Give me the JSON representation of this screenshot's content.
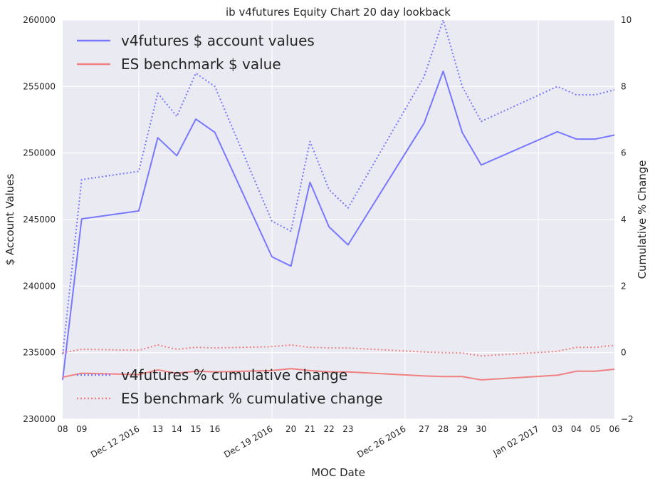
{
  "chart_data": {
    "type": "line",
    "title": "ib v4futures Equity Chart 20 day lookback",
    "xlabel": "MOC Date",
    "ylabel_left": "$ Account Values",
    "ylabel_right": "Cumulative % Change",
    "style": {
      "background": "#EAEAF2",
      "grid_color": "#FFFFFF",
      "grid": true
    },
    "x_range": [
      "2016-12-08",
      "2017-01-06"
    ],
    "ylim_left": [
      230000,
      260000
    ],
    "ylim_right": [
      -2,
      10
    ],
    "yticks_left": [
      {
        "value": 230000,
        "label": "230000"
      },
      {
        "value": 235000,
        "label": "235000"
      },
      {
        "value": 240000,
        "label": "240000"
      },
      {
        "value": 245000,
        "label": "245000"
      },
      {
        "value": 250000,
        "label": "250000"
      },
      {
        "value": 255000,
        "label": "255000"
      },
      {
        "value": 260000,
        "label": "260000"
      }
    ],
    "yticks_right": [
      {
        "value": -2,
        "label": "−2"
      },
      {
        "value": 0,
        "label": "0"
      },
      {
        "value": 2,
        "label": "2"
      },
      {
        "value": 4,
        "label": "4"
      },
      {
        "value": 6,
        "label": "6"
      },
      {
        "value": 8,
        "label": "8"
      },
      {
        "value": 10,
        "label": "10"
      }
    ],
    "major_ticks": [
      {
        "date": "2016-12-12",
        "label": "Dec 12 2016"
      },
      {
        "date": "2016-12-19",
        "label": "Dec 19 2016"
      },
      {
        "date": "2016-12-26",
        "label": "Dec 26 2016"
      },
      {
        "date": "2017-01-02",
        "label": "Jan 02 2017"
      }
    ],
    "minor_ticks": [
      {
        "date": "2016-12-08",
        "label": "08"
      },
      {
        "date": "2016-12-09",
        "label": "09"
      },
      {
        "date": "2016-12-13",
        "label": "13"
      },
      {
        "date": "2016-12-14",
        "label": "14"
      },
      {
        "date": "2016-12-15",
        "label": "15"
      },
      {
        "date": "2016-12-16",
        "label": "16"
      },
      {
        "date": "2016-12-20",
        "label": "20"
      },
      {
        "date": "2016-12-21",
        "label": "21"
      },
      {
        "date": "2016-12-22",
        "label": "22"
      },
      {
        "date": "2016-12-23",
        "label": "23"
      },
      {
        "date": "2016-12-27",
        "label": "27"
      },
      {
        "date": "2016-12-28",
        "label": "28"
      },
      {
        "date": "2016-12-29",
        "label": "29"
      },
      {
        "date": "2016-12-30",
        "label": "30"
      },
      {
        "date": "2017-01-03",
        "label": "03"
      },
      {
        "date": "2017-01-04",
        "label": "04"
      },
      {
        "date": "2017-01-05",
        "label": "05"
      },
      {
        "date": "2017-01-06",
        "label": "06"
      }
    ],
    "dates": [
      "2016-12-08",
      "2016-12-09",
      "2016-12-12",
      "2016-12-13",
      "2016-12-14",
      "2016-12-15",
      "2016-12-16",
      "2016-12-19",
      "2016-12-20",
      "2016-12-21",
      "2016-12-22",
      "2016-12-23",
      "2016-12-27",
      "2016-12-28",
      "2016-12-29",
      "2016-12-30",
      "2017-01-03",
      "2017-01-04",
      "2017-01-05",
      "2017-01-06"
    ],
    "series": [
      {
        "name": "v4futures $ account values",
        "axis": "left",
        "color": "#7777FF",
        "dash": "solid",
        "legend_group": "top",
        "values": [
          232950,
          245050,
          245650,
          251150,
          249800,
          252550,
          251550,
          242200,
          241500,
          247800,
          244450,
          243100,
          252250,
          256150,
          251550,
          249100,
          251600,
          251050,
          251050,
          251350
        ]
      },
      {
        "name": "ES benchmark $ value",
        "axis": "left",
        "color": "#F08080",
        "dash": "solid",
        "legend_group": "top",
        "values": [
          233150,
          233450,
          233350,
          233700,
          233450,
          233600,
          233550,
          233650,
          233800,
          233650,
          233550,
          233550,
          233250,
          233200,
          233200,
          232950,
          233300,
          233600,
          233600,
          233750
        ]
      },
      {
        "name": "v4futures % cumulative change",
        "axis": "right",
        "color": "#7777FF",
        "dash": "dotted",
        "legend_group": "bottom",
        "values": [
          -0.05,
          5.2,
          5.45,
          7.8,
          7.1,
          8.4,
          8.0,
          3.95,
          3.65,
          6.35,
          4.9,
          4.35,
          8.3,
          10.0,
          8.0,
          6.95,
          8.0,
          7.75,
          7.75,
          7.9
        ]
      },
      {
        "name": "ES benchmark % cumulative change",
        "axis": "right",
        "color": "#F08080",
        "dash": "dotted",
        "legend_group": "bottom",
        "values": [
          0.0,
          0.1,
          0.07,
          0.23,
          0.1,
          0.16,
          0.14,
          0.18,
          0.23,
          0.16,
          0.14,
          0.14,
          0.02,
          0.0,
          -0.01,
          -0.1,
          0.04,
          0.16,
          0.16,
          0.22
        ]
      }
    ],
    "legends": {
      "top": {
        "placement": "top-left",
        "entries": [
          "v4futures $ account values",
          "ES benchmark $ value"
        ]
      },
      "bottom": {
        "placement": "bottom-left",
        "entries": [
          "v4futures % cumulative change",
          "ES benchmark % cumulative change"
        ]
      }
    }
  }
}
